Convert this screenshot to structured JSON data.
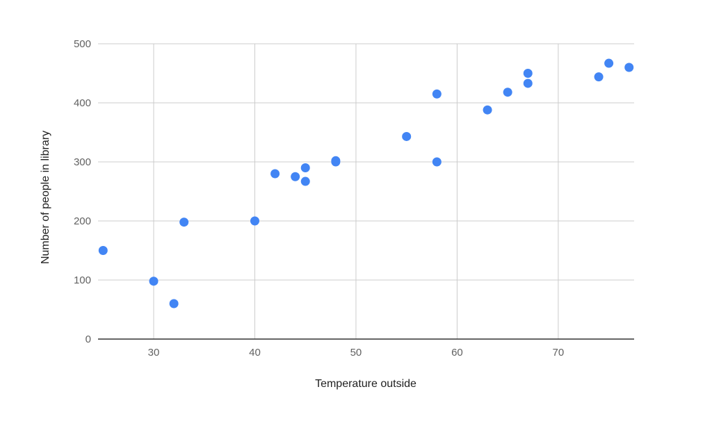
{
  "chart_data": {
    "type": "scatter",
    "title": "",
    "xlabel": "Temperature outside",
    "ylabel": "Number of people in library",
    "xlim": [
      24.5,
      77.5
    ],
    "ylim": [
      0,
      500
    ],
    "x_ticks": [
      30,
      40,
      50,
      60,
      70
    ],
    "y_ticks": [
      0,
      100,
      200,
      300,
      400,
      500
    ],
    "grid": true,
    "legend": "none",
    "series": [
      {
        "color": "#4285f4",
        "points": [
          {
            "x": 25,
            "y": 150
          },
          {
            "x": 30,
            "y": 98
          },
          {
            "x": 32,
            "y": 60
          },
          {
            "x": 33,
            "y": 198
          },
          {
            "x": 40,
            "y": 200
          },
          {
            "x": 42,
            "y": 280
          },
          {
            "x": 44,
            "y": 275
          },
          {
            "x": 45,
            "y": 290
          },
          {
            "x": 45,
            "y": 267
          },
          {
            "x": 48,
            "y": 300
          },
          {
            "x": 48,
            "y": 302
          },
          {
            "x": 55,
            "y": 343
          },
          {
            "x": 58,
            "y": 415
          },
          {
            "x": 58,
            "y": 300
          },
          {
            "x": 63,
            "y": 388
          },
          {
            "x": 65,
            "y": 418
          },
          {
            "x": 67,
            "y": 450
          },
          {
            "x": 67,
            "y": 433
          },
          {
            "x": 74,
            "y": 444
          },
          {
            "x": 75,
            "y": 467
          },
          {
            "x": 77,
            "y": 460
          }
        ]
      }
    ],
    "colors": {
      "gridline": "#cccccc",
      "baseline": "#333333",
      "point": "#4285f4"
    }
  }
}
